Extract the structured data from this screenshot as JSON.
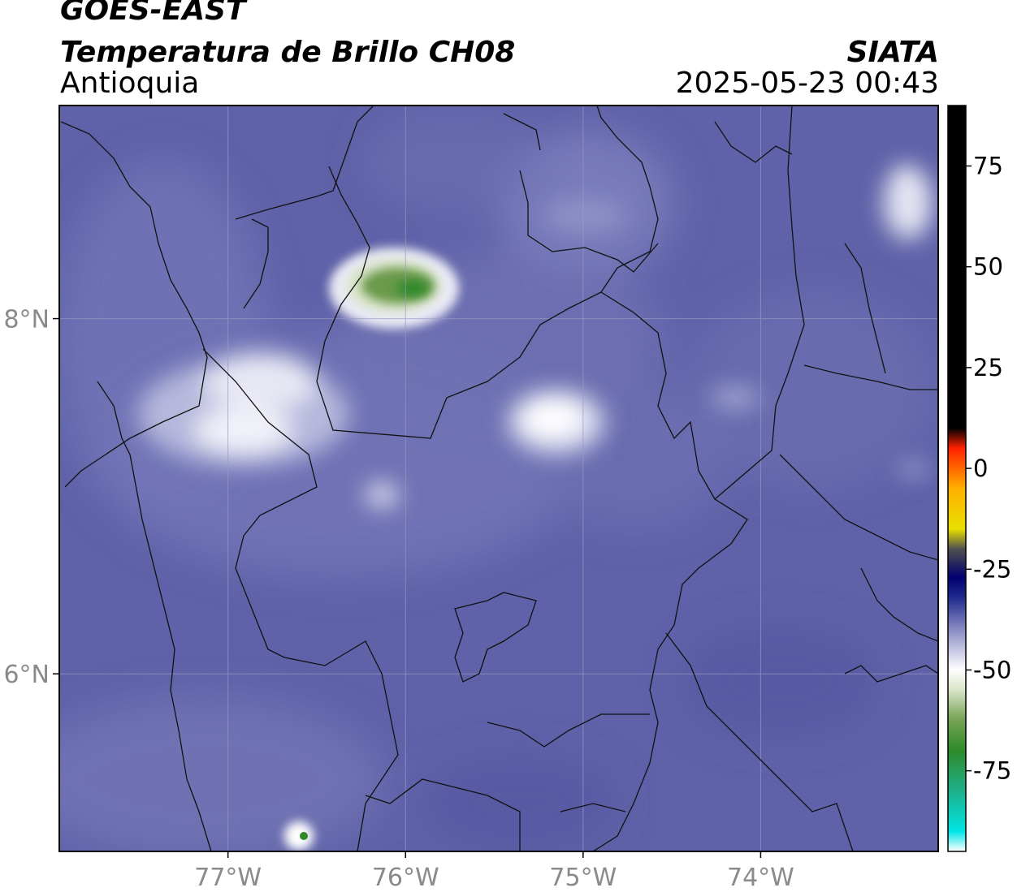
{
  "header": {
    "satellite": "GOES-EAST",
    "product": "Temperatura de Brillo CH08",
    "region": "Antioquia",
    "org": "SIATA",
    "datetime": "2025-05-23 00:43"
  },
  "map": {
    "lon_range": [
      -77.95,
      -73.0
    ],
    "lat_range": [
      5.0,
      9.2
    ],
    "lon_ticks": [
      {
        "value": -77,
        "label": "77°W"
      },
      {
        "value": -76,
        "label": "76°W"
      },
      {
        "value": -75,
        "label": "75°W"
      },
      {
        "value": -74,
        "label": "74°W"
      }
    ],
    "lat_ticks": [
      {
        "value": 8,
        "label": "8°N"
      },
      {
        "value": 6,
        "label": "6°N"
      }
    ],
    "grid": true,
    "background_color": "#5f62a8",
    "features": [
      {
        "name": "cold-cloud-urabá",
        "lon": -76.0,
        "lat": 8.2,
        "tb_min": -75
      },
      {
        "name": "cold-cloud-west",
        "lon": -76.9,
        "lat": 7.55,
        "tb_min": -50
      },
      {
        "name": "cold-cloud-central",
        "lon": -75.15,
        "lat": 7.6,
        "tb_min": -52
      },
      {
        "name": "cold-cloud-northeast",
        "lon": -73.05,
        "lat": 8.7,
        "tb_min": -50
      },
      {
        "name": "cold-cloud-south",
        "lon": -76.55,
        "lat": 5.05,
        "tb_min": -70
      }
    ]
  },
  "colorbar": {
    "min": -95,
    "max": 90,
    "ticks": [
      {
        "value": 75,
        "label": "75"
      },
      {
        "value": 50,
        "label": "50"
      },
      {
        "value": 25,
        "label": "25"
      },
      {
        "value": 0,
        "label": "0"
      },
      {
        "value": -25,
        "label": "-25"
      },
      {
        "value": -50,
        "label": "-50"
      },
      {
        "value": -75,
        "label": "-75"
      }
    ],
    "stops": [
      {
        "value": -95,
        "color": "#ffffff"
      },
      {
        "value": -90,
        "color": "#00e5e5"
      },
      {
        "value": -80,
        "color": "#1fb08a"
      },
      {
        "value": -70,
        "color": "#2f8a2a"
      },
      {
        "value": -62,
        "color": "#7aa55a"
      },
      {
        "value": -55,
        "color": "#d8e4c8"
      },
      {
        "value": -50,
        "color": "#ffffff"
      },
      {
        "value": -40,
        "color": "#8a8cc4"
      },
      {
        "value": -32,
        "color": "#202a8c"
      },
      {
        "value": -27,
        "color": "#000070"
      },
      {
        "value": -20,
        "color": "#505050"
      },
      {
        "value": -15,
        "color": "#e8e000"
      },
      {
        "value": -5,
        "color": "#ffb000"
      },
      {
        "value": 5,
        "color": "#ff2000"
      },
      {
        "value": 10,
        "color": "#000000"
      },
      {
        "value": 90,
        "color": "#000000"
      }
    ]
  }
}
